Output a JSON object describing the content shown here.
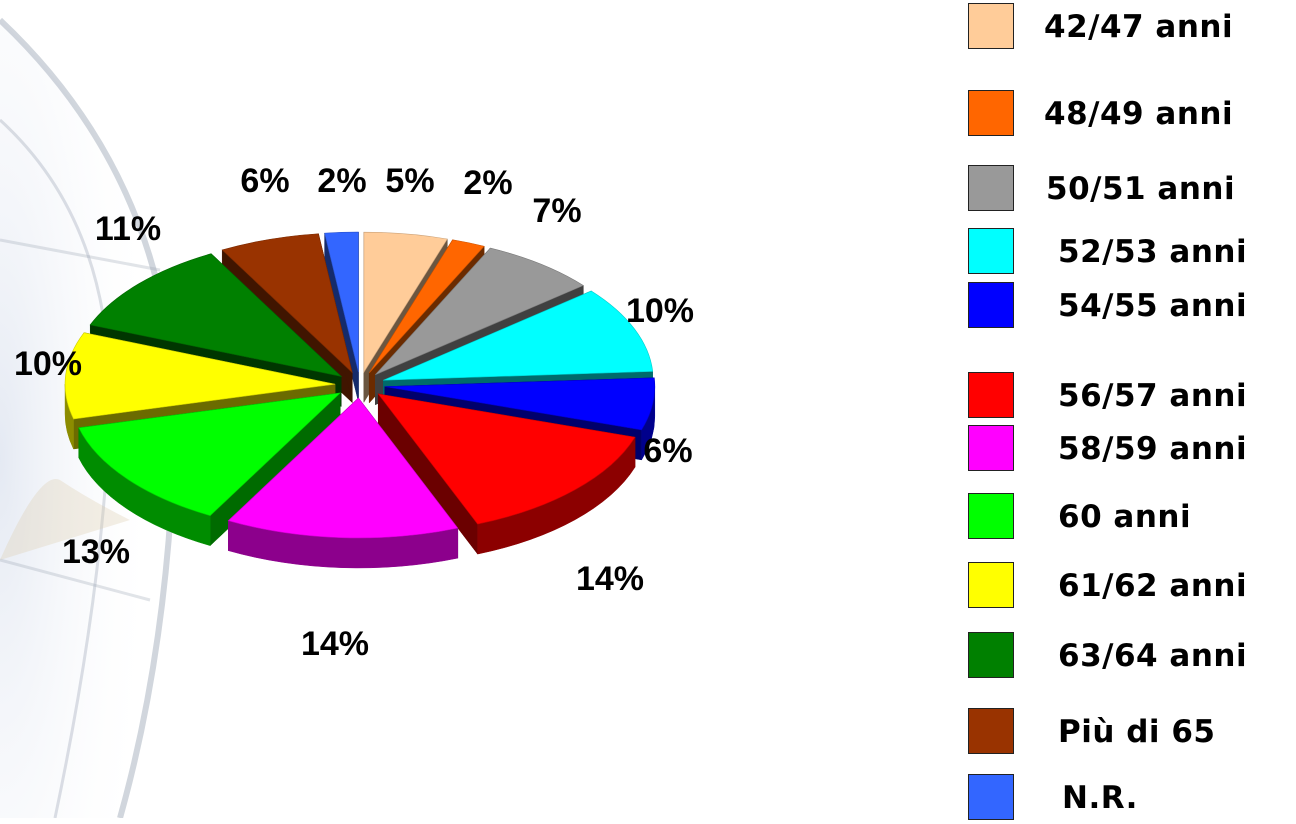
{
  "chart_data": {
    "type": "pie",
    "title": "",
    "style": "3d-exploded",
    "legend_position": "right",
    "categories": [
      "42/47 anni",
      "48/49 anni",
      "50/51 anni",
      "52/53 anni",
      "54/55 anni",
      "56/57 anni",
      "58/59 anni",
      "60 anni",
      "61/62 anni",
      "63/64 anni",
      "Più di 65",
      "N.R."
    ],
    "values": [
      5,
      2,
      7,
      10,
      6,
      14,
      14,
      13,
      10,
      11,
      6,
      2
    ],
    "labels": [
      "5%",
      "2%",
      "7%",
      "10%",
      "6%",
      "14%",
      "14%",
      "13%",
      "10%",
      "11%",
      "6%",
      "2%"
    ],
    "colors": [
      "#FFCC99",
      "#FF6600",
      "#999999",
      "#00FFFF",
      "#0000FF",
      "#FF0000",
      "#FF00FF",
      "#00FF00",
      "#FFFF00",
      "#008000",
      "#993300",
      "#3366FF"
    ]
  }
}
